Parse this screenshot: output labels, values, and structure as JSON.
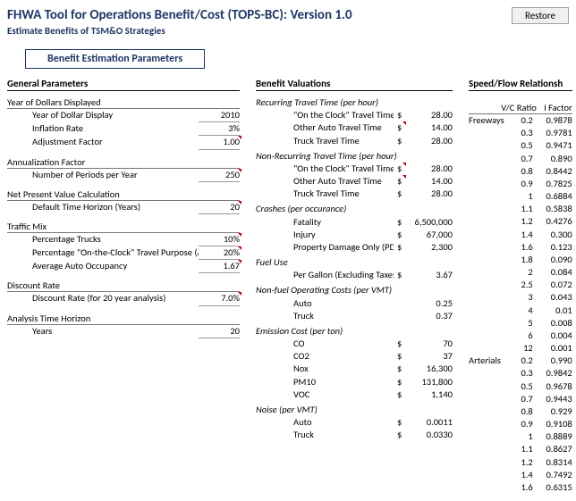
{
  "header": {
    "title": "FHWA Tool for Operations Benefit/Cost (TOPS-BC):  Version 1.0",
    "subtitle": "Estimate Benefits of TSM&O Strategies",
    "restore_label": "Restore",
    "param_box": "Benefit Estimation Parameters"
  },
  "general": {
    "title": "General Parameters",
    "groups": [
      {
        "head": "Year of Dollars Displayed",
        "rows": [
          {
            "label": "Year of Dollar Display",
            "value": "2010"
          },
          {
            "label": "Inflation Rate",
            "value": "3%"
          },
          {
            "label": "Adjustment Factor",
            "value": "1.00",
            "mark": true
          }
        ]
      },
      {
        "head": "Annualization Factor",
        "rows": [
          {
            "label": "Number of Periods per Year",
            "value": "250",
            "mark": true
          }
        ]
      },
      {
        "head": "Net Present Value Calculation",
        "rows": [
          {
            "label": "Default Time Horizon (Years)",
            "value": "20",
            "mark": true
          }
        ]
      },
      {
        "head": "Traffic Mix",
        "rows": [
          {
            "label": "Percentage Trucks",
            "value": "10%",
            "mark": true
          },
          {
            "label": "Percentage \"On-the-Clock\" Travel Purpose (A",
            "value": "20%",
            "mark": true
          },
          {
            "label": "Average Auto Occupancy",
            "value": "1.67",
            "mark": true
          }
        ]
      },
      {
        "head": "Discount Rate",
        "rows": [
          {
            "label": "Discount Rate (for 20 year analysis)",
            "value": "7.0%",
            "mark": true
          }
        ]
      },
      {
        "head": "Analysis Time Horizon",
        "rows": [
          {
            "label": "Years",
            "value": "20"
          }
        ]
      }
    ]
  },
  "valuations": {
    "title": "Benefit Valuations",
    "sections": [
      {
        "head": "Recurring Travel Time (per hour)",
        "rows": [
          {
            "label": "\"On the Clock\" Travel Time",
            "cur": "$",
            "value": "28.00"
          },
          {
            "label": "Other Auto Travel Time",
            "cur": "$",
            "value": "14.00",
            "mark": true
          },
          {
            "label": "Truck Travel Time",
            "cur": "$",
            "value": "28.00"
          }
        ]
      },
      {
        "head": "Non-Recurring Travel Time (per hour)",
        "rows": [
          {
            "label": "\"On the Clock\" Travel Time",
            "cur": "$",
            "value": "28.00",
            "mark": true
          },
          {
            "label": "Other Auto Travel Time",
            "cur": "$",
            "value": "14.00",
            "mark": true
          },
          {
            "label": "Truck Travel Time",
            "cur": "$",
            "value": "28.00"
          }
        ]
      },
      {
        "head": "Crashes (per occurance)",
        "rows": [
          {
            "label": "Fatality",
            "cur": "$",
            "value": "6,500,000"
          },
          {
            "label": "Injury",
            "cur": "$",
            "value": "67,000"
          },
          {
            "label": "Property Damage Only (PDO)",
            "cur": "$",
            "value": "2,300"
          }
        ]
      },
      {
        "head": "Fuel Use",
        "rows": [
          {
            "label": "Per Gallon (Excluding Taxes)",
            "cur": "$",
            "value": "3.67"
          }
        ]
      },
      {
        "head": "Non-fuel Operating Costs (per VMT)",
        "rows": [
          {
            "label": "Auto",
            "cur": "",
            "value": "0.25"
          },
          {
            "label": "Truck",
            "cur": "",
            "value": "0.37"
          }
        ]
      },
      {
        "head": "Emission Cost (per ton)",
        "rows": [
          {
            "label": "CO",
            "cur": "$",
            "value": "70"
          },
          {
            "label": "CO2",
            "cur": "$",
            "value": "37"
          },
          {
            "label": "Nox",
            "cur": "$",
            "value": "16,300"
          },
          {
            "label": "PM10",
            "cur": "$",
            "value": "131,800"
          },
          {
            "label": "VOC",
            "cur": "$",
            "value": "1,140"
          }
        ]
      },
      {
        "head": "Noise (per VMT)",
        "rows": [
          {
            "label": "",
            "cur": "",
            "value": ""
          },
          {
            "label": "Auto",
            "cur": "$",
            "value": "0.0011"
          },
          {
            "label": "Truck",
            "cur": "$",
            "value": "0.0330"
          }
        ]
      }
    ]
  },
  "speedflow": {
    "title": "Speed/Flow Relationsh",
    "col_vc": "V/C Ratio",
    "col_if": "I Factor",
    "groups": [
      {
        "label": "Freeways",
        "rows": [
          {
            "vc": "0.2",
            "if": "0.9878"
          },
          {
            "vc": "0.3",
            "if": "0.9781"
          },
          {
            "vc": "0.5",
            "if": "0.9471"
          },
          {
            "vc": "0.7",
            "if": "0.890"
          },
          {
            "vc": "0.8",
            "if": "0.8442"
          },
          {
            "vc": "0.9",
            "if": "0.7825"
          },
          {
            "vc": "1",
            "if": "0.6884"
          },
          {
            "vc": "1.1",
            "if": "0.5838"
          },
          {
            "vc": "1.2",
            "if": "0.4276"
          },
          {
            "vc": "1.4",
            "if": "0.300"
          },
          {
            "vc": "1.6",
            "if": "0.123"
          },
          {
            "vc": "1.8",
            "if": "0.090"
          },
          {
            "vc": "2",
            "if": "0.084"
          },
          {
            "vc": "2.5",
            "if": "0.072"
          },
          {
            "vc": "3",
            "if": "0.043"
          },
          {
            "vc": "4",
            "if": "0.01"
          },
          {
            "vc": "5",
            "if": "0.008"
          },
          {
            "vc": "6",
            "if": "0.004"
          },
          {
            "vc": "12",
            "if": "0.001"
          }
        ]
      },
      {
        "label": "Arterials",
        "rows": [
          {
            "vc": "0.2",
            "if": "0.990"
          },
          {
            "vc": "0.3",
            "if": "0.9842"
          },
          {
            "vc": "0.5",
            "if": "0.9678"
          },
          {
            "vc": "0.7",
            "if": "0.9443"
          },
          {
            "vc": "0.8",
            "if": "0.929"
          },
          {
            "vc": "0.9",
            "if": "0.9108"
          },
          {
            "vc": "1",
            "if": "0.8889"
          },
          {
            "vc": "1.1",
            "if": "0.8627"
          },
          {
            "vc": "1.2",
            "if": "0.8314"
          },
          {
            "vc": "",
            "if": ""
          },
          {
            "vc": "1.4",
            "if": "0.7492"
          },
          {
            "vc": "1.6",
            "if": "0.6315"
          }
        ]
      }
    ]
  }
}
